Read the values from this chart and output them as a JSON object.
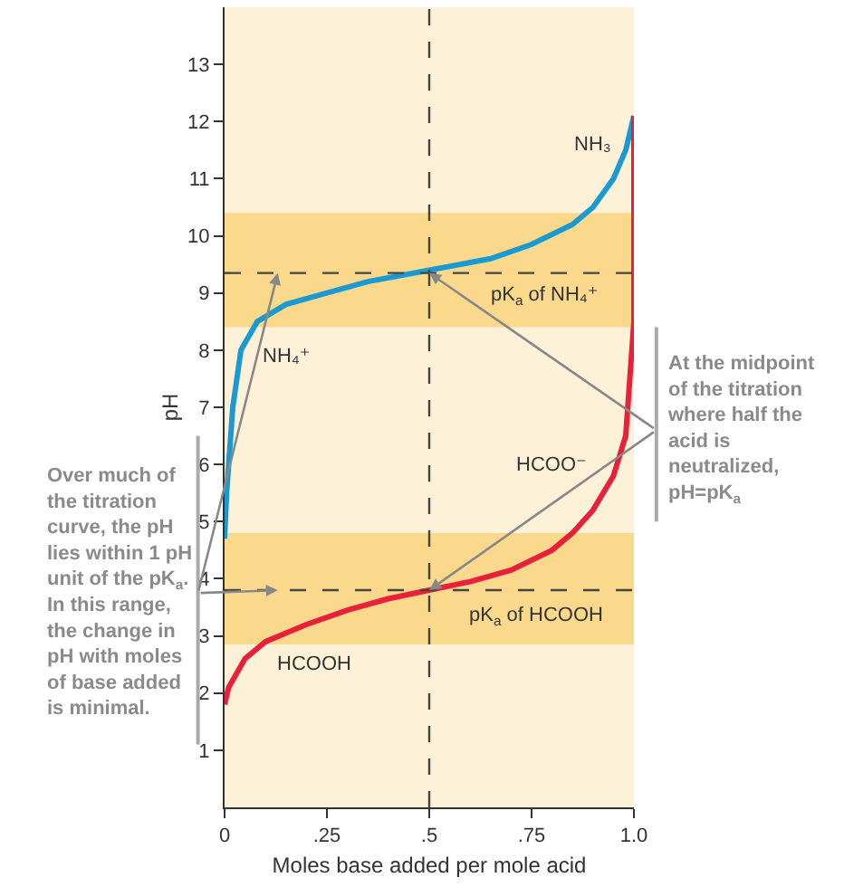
{
  "chart_data": {
    "type": "line",
    "xlabel": "Moles base added per mole acid",
    "ylabel": "pH",
    "xlim": [
      0,
      1
    ],
    "xticks": [
      0,
      {
        "value": 0.25,
        "label": ".25"
      },
      {
        "value": 0.5,
        "label": ".5"
      },
      {
        "value": 0.75,
        "label": ".75"
      },
      {
        "value": 1,
        "label": "1.0"
      }
    ],
    "ylim": [
      0,
      14
    ],
    "yticks": [
      1,
      2,
      3,
      4,
      5,
      6,
      7,
      8,
      9,
      10,
      11,
      12,
      13
    ],
    "series": [
      {
        "color": "#1b9ad2",
        "x": [
          0,
          0.005,
          0.01,
          0.02,
          0.04,
          0.08,
          0.15,
          0.25,
          0.35,
          0.5,
          0.65,
          0.75,
          0.85,
          0.9,
          0.95,
          0.98,
          1.0
        ],
        "values": [
          4.7,
          5.5,
          6.0,
          7.0,
          8.0,
          8.5,
          8.8,
          9.0,
          9.2,
          9.4,
          9.6,
          9.85,
          10.2,
          10.5,
          11.0,
          11.5,
          12.1
        ]
      },
      {
        "color": "#e8203a",
        "x": [
          0,
          0.01,
          0.05,
          0.1,
          0.2,
          0.3,
          0.4,
          0.5,
          0.6,
          0.7,
          0.8,
          0.85,
          0.9,
          0.95,
          0.98,
          0.99,
          1.0,
          1.0
        ],
        "values": [
          1.8,
          2.1,
          2.6,
          2.9,
          3.2,
          3.45,
          3.65,
          3.8,
          3.95,
          4.15,
          4.5,
          4.8,
          5.2,
          5.8,
          6.5,
          7.5,
          8.5,
          12.1
        ]
      }
    ],
    "bands": [
      {
        "axis": "y",
        "from": 8.4,
        "to": 10.4,
        "color": "#fad98c"
      },
      {
        "axis": "y",
        "from": 2.85,
        "to": 4.8,
        "color": "#fad98c"
      }
    ],
    "ref_lines": [
      {
        "axis": "y",
        "value": 9.35,
        "line_style": "dashed",
        "color": "#444444"
      },
      {
        "axis": "y",
        "value": 3.8,
        "line_style": "dashed",
        "color": "#444444"
      },
      {
        "axis": "x",
        "value": 0.5,
        "line_style": "dashed",
        "color": "#444444"
      }
    ],
    "annotations": [
      "NH₃",
      "pK$_{a}$ of NH₄⁺",
      "NH₄⁺",
      "HCOO⁻",
      "pK$_{a}$ of HCOOH",
      "HCOOH",
      "Over much of\nthe titration\ncurve, the pH\nlies within 1 pH\nunit of the pK$_{a}$.\nIn this range,\nthe change in\npH with moles\nof base added\nis minimal.",
      "At the midpoint\nof the titration\nwhere half the\nacid is\nneutralized,\npH=pK$_{a}$"
    ]
  }
}
